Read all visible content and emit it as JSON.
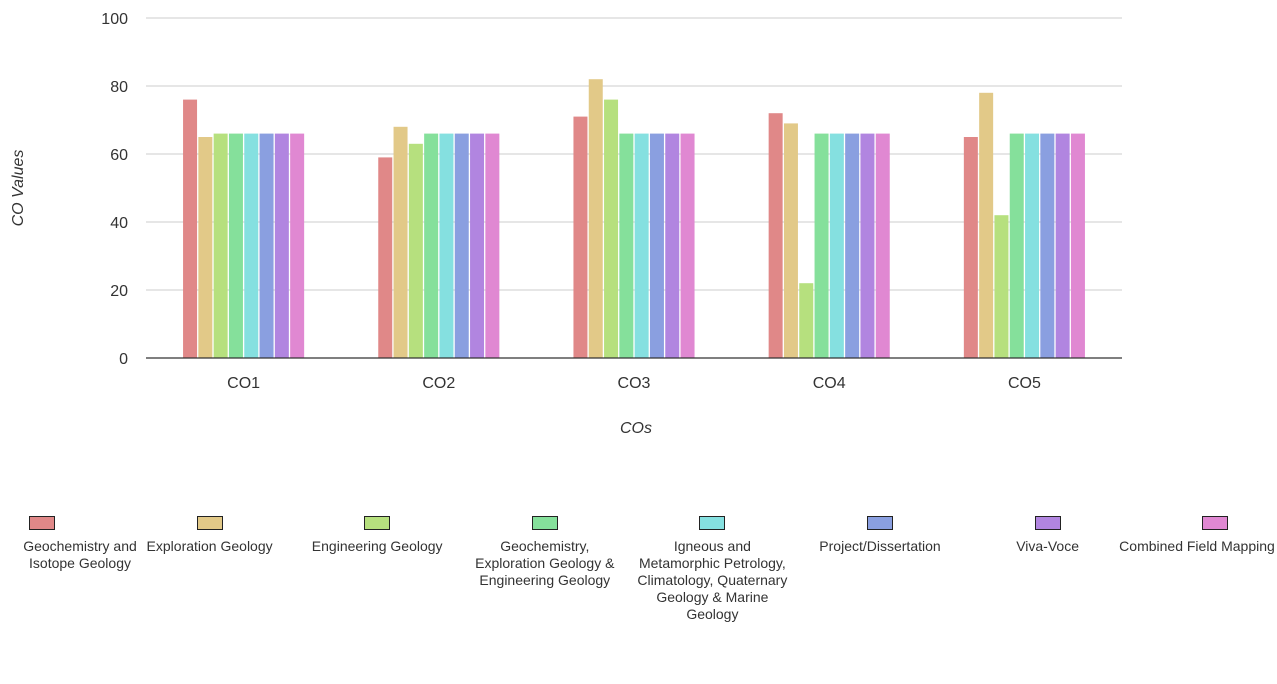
{
  "chart_data": {
    "type": "bar",
    "xlabel": "COs",
    "ylabel": "CO Values",
    "ylim": [
      0,
      100
    ],
    "yticks": [
      0,
      20,
      40,
      60,
      80,
      100
    ],
    "grid": true,
    "legend_position": "bottom",
    "categories": [
      "CO1",
      "CO2",
      "CO3",
      "CO4",
      "CO5"
    ],
    "series": [
      {
        "name": "Geochemistry and Isotope Geology",
        "color": "#e08888",
        "values": [
          76,
          59,
          71,
          72,
          65
        ]
      },
      {
        "name": "Exploration Geology",
        "color": "#e2c988",
        "values": [
          65,
          68,
          82,
          69,
          78
        ]
      },
      {
        "name": "Engineering Geology",
        "color": "#b6e07e",
        "values": [
          66,
          63,
          76,
          22,
          42
        ]
      },
      {
        "name": "Geochemistry, Exploration Geology & Engineering Geology",
        "color": "#85e09b",
        "values": [
          66,
          66,
          66,
          66,
          66
        ]
      },
      {
        "name": "Igneous and Metamorphic Petrology, Climatology, Quaternary Geology & Marine Geology",
        "color": "#85e0e0",
        "values": [
          66,
          66,
          66,
          66,
          66
        ]
      },
      {
        "name": "Project/Dissertation",
        "color": "#8a9fe0",
        "values": [
          66,
          66,
          66,
          66,
          66
        ]
      },
      {
        "name": "Viva-Voce",
        "color": "#b185e0",
        "values": [
          66,
          66,
          66,
          66,
          66
        ]
      },
      {
        "name": "Combined Field Mapping",
        "color": "#e088d2",
        "values": [
          66,
          66,
          66,
          66,
          66
        ]
      }
    ]
  }
}
